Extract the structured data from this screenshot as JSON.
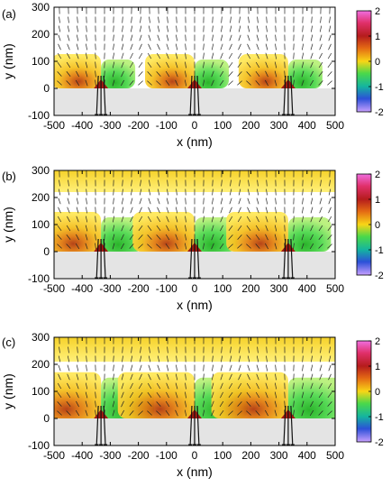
{
  "figure": {
    "panels": [
      {
        "label": "(a)",
        "xlabel": "x (nm)",
        "ylabel": "y (nm)",
        "top_band": false,
        "lobe_width": 1.0,
        "colorbar_ticks": [
          "2",
          "1",
          "0",
          "-1",
          "-2"
        ]
      },
      {
        "label": "(b)",
        "xlabel": "x (nm)",
        "ylabel": "y (nm)",
        "top_band": true,
        "lobe_width": 1.25,
        "colorbar_ticks": [
          "2",
          "1",
          "0",
          "-1",
          "-2"
        ]
      },
      {
        "label": "(c)",
        "xlabel": "x (nm)",
        "ylabel": "y (nm)",
        "top_band": true,
        "lobe_width": 1.55,
        "colorbar_ticks": [
          "2",
          "1",
          "0",
          "-1",
          "-2"
        ]
      }
    ]
  },
  "chart_data": [
    {
      "type": "heatmap",
      "title": "",
      "xlabel": "x (nm)",
      "ylabel": "y (nm)",
      "xlim": [
        -500,
        500
      ],
      "ylim": [
        -100,
        300
      ],
      "xticks": [
        -500,
        -400,
        -300,
        -200,
        -100,
        0,
        100,
        200,
        300,
        400,
        500
      ],
      "yticks": [
        -100,
        0,
        100,
        200,
        300
      ],
      "colorbar": {
        "range": [
          -2,
          2
        ],
        "ticks": [
          2,
          1,
          0,
          -1,
          -2
        ]
      },
      "substrate": {
        "y_range": [
          -100,
          0
        ],
        "color": "#e4e4e4"
      },
      "sources_x": [
        -333,
        0,
        333
      ],
      "top_band": null,
      "vector_field": true
    },
    {
      "type": "heatmap",
      "title": "",
      "xlabel": "x (nm)",
      "ylabel": "y (nm)",
      "xlim": [
        -500,
        500
      ],
      "ylim": [
        -100,
        300
      ],
      "xticks": [
        -500,
        -400,
        -300,
        -200,
        -100,
        0,
        100,
        200,
        300,
        400,
        500
      ],
      "yticks": [
        -100,
        0,
        100,
        200,
        300
      ],
      "colorbar": {
        "range": [
          -2,
          2
        ],
        "ticks": [
          2,
          1,
          0,
          -1,
          -2
        ]
      },
      "substrate": {
        "y_range": [
          -100,
          0
        ],
        "color": "#e4e4e4"
      },
      "sources_x": [
        -333,
        0,
        333
      ],
      "top_band": {
        "y_range": [
          220,
          300
        ]
      },
      "vector_field": true
    },
    {
      "type": "heatmap",
      "title": "",
      "xlabel": "x (nm)",
      "ylabel": "y (nm)",
      "xlim": [
        -500,
        500
      ],
      "ylim": [
        -100,
        300
      ],
      "xticks": [
        -500,
        -400,
        -300,
        -200,
        -100,
        0,
        100,
        200,
        300,
        400,
        500
      ],
      "yticks": [
        -100,
        0,
        100,
        200,
        300
      ],
      "colorbar": {
        "range": [
          -2,
          2
        ],
        "ticks": [
          2,
          1,
          0,
          -1,
          -2
        ]
      },
      "substrate": {
        "y_range": [
          -100,
          0
        ],
        "color": "#e4e4e4"
      },
      "sources_x": [
        -333,
        0,
        333
      ],
      "top_band": {
        "y_range": [
          210,
          300
        ]
      },
      "vector_field": true
    }
  ]
}
